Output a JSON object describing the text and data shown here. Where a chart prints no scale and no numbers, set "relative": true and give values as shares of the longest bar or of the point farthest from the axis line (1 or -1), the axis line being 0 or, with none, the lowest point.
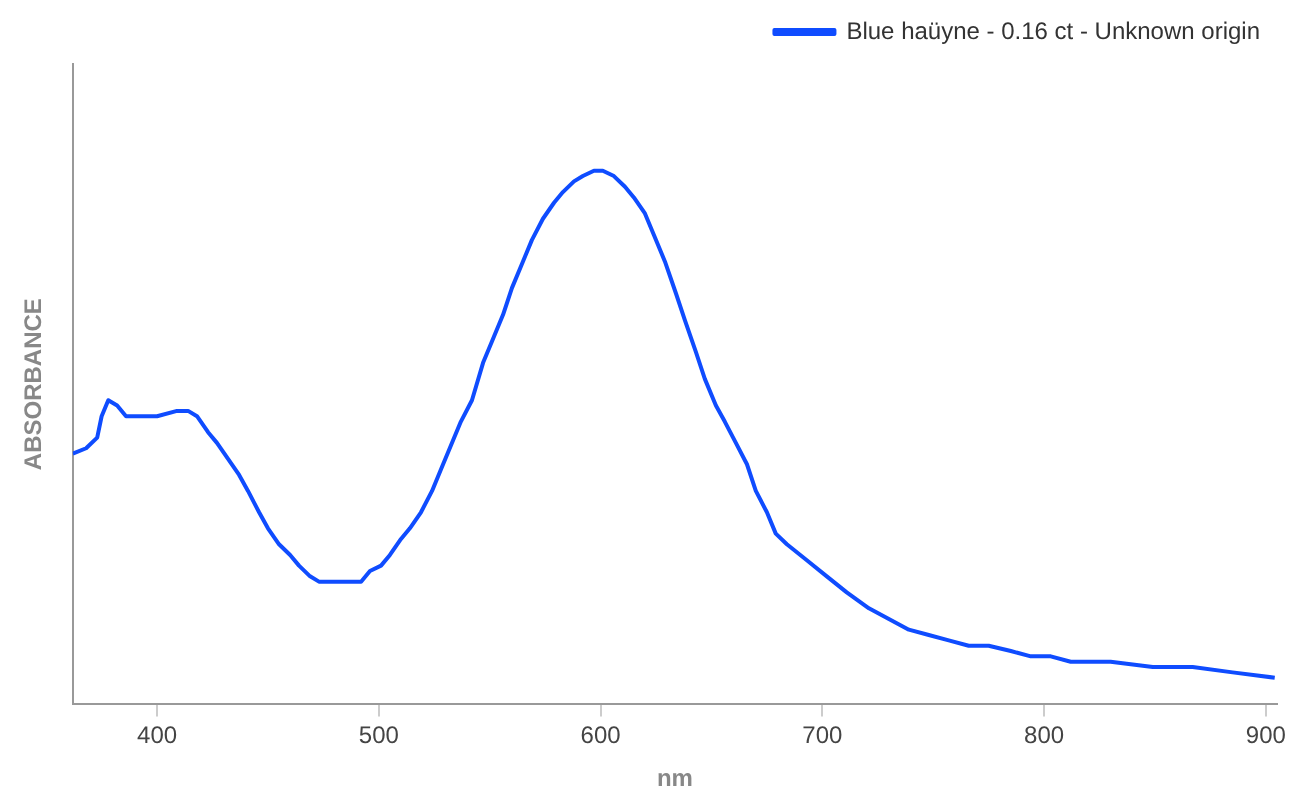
{
  "chart_data": {
    "type": "line",
    "relative": true,
    "xlabel": "nm",
    "ylabel": "ABSORBANCE",
    "xlim": [
      362,
      905
    ],
    "xticks": [
      400,
      500,
      600,
      700,
      800,
      900
    ],
    "legend": "top right",
    "grid": false,
    "marker": "none",
    "line_style": "solid",
    "series": [
      {
        "name": "Blue haüyne - 0.16 ct - Unknown origin",
        "color": "#0f4cff",
        "x": [
          362,
          368,
          373,
          375,
          378,
          382,
          386,
          391,
          400,
          409,
          414,
          418,
          423,
          427,
          432,
          437,
          441,
          446,
          450,
          455,
          460,
          464,
          469,
          473,
          482,
          492,
          496,
          501,
          505,
          510,
          514,
          519,
          524,
          528,
          537,
          542,
          547,
          551,
          556,
          560,
          565,
          569,
          574,
          579,
          583,
          588,
          592,
          597,
          601,
          606,
          611,
          615,
          620,
          624,
          629,
          634,
          638,
          643,
          647,
          652,
          656,
          661,
          666,
          670,
          675,
          679,
          684,
          693,
          702,
          711,
          721,
          730,
          739,
          748,
          757,
          766,
          775,
          785,
          794,
          803,
          812,
          830,
          849,
          867,
          885,
          904
        ],
        "values": [
          0.47,
          0.48,
          0.5,
          0.54,
          0.57,
          0.56,
          0.54,
          0.54,
          0.54,
          0.55,
          0.55,
          0.54,
          0.51,
          0.49,
          0.46,
          0.43,
          0.4,
          0.36,
          0.33,
          0.3,
          0.28,
          0.26,
          0.24,
          0.23,
          0.23,
          0.23,
          0.25,
          0.26,
          0.28,
          0.31,
          0.33,
          0.36,
          0.4,
          0.44,
          0.53,
          0.57,
          0.64,
          0.68,
          0.73,
          0.78,
          0.83,
          0.87,
          0.91,
          0.94,
          0.96,
          0.98,
          0.99,
          1,
          1,
          0.99,
          0.97,
          0.95,
          0.92,
          0.88,
          0.83,
          0.77,
          0.72,
          0.66,
          0.61,
          0.56,
          0.53,
          0.49,
          0.45,
          0.4,
          0.36,
          0.32,
          0.3,
          0.27,
          0.24,
          0.21,
          0.18,
          0.16,
          0.14,
          0.13,
          0.12,
          0.11,
          0.11,
          0.1,
          0.09,
          0.09,
          0.08,
          0.08,
          0.07,
          0.07,
          0.06,
          0.05
        ]
      }
    ]
  }
}
